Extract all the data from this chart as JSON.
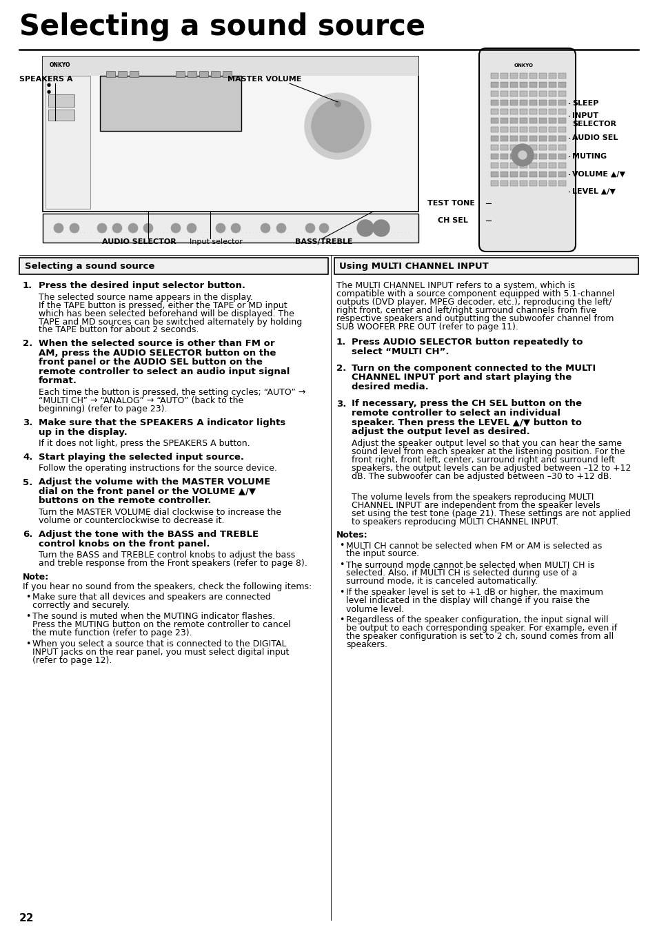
{
  "page_bg": "#ffffff",
  "title": "Selecting a sound source",
  "page_number": "22",
  "left_section_header": "Selecting a sound source",
  "right_section_header": "Using MULTI CHANNEL INPUT",
  "right_intro_lines": [
    "The MULTI CHANNEL INPUT refers to a system, which is",
    "compatible with a source component equipped with 5.1-channel",
    "outputs (DVD player, MPEG decoder, etc.), reproducing the left/",
    "right front, center and left/right surround channels from five",
    "respective speakers and outputting the subwoofer channel from",
    "SUB WOOFER PRE OUT (refer to page 11)."
  ],
  "left_steps": [
    {
      "num": "1.",
      "bold_lines": [
        "Press the desired input selector button."
      ],
      "normal_lines": [
        "The selected source name appears in the display.",
        "If the TAPE button is pressed, either the TAPE or MD input",
        "which has been selected beforehand will be displayed. The",
        "TAPE and MD sources can be switched alternately by holding",
        "the TAPE button for about 2 seconds."
      ]
    },
    {
      "num": "2.",
      "bold_lines": [
        "When the selected source is other than FM or",
        "AM, press the AUDIO SELECTOR button on the",
        "front panel or the AUDIO SEL button on the",
        "remote controller to select an audio input signal",
        "format."
      ],
      "normal_lines": [
        "Each time the button is pressed, the setting cycles; “AUTO” →",
        "“MULTI CH” → “ANALOG” → “AUTO” (back to the",
        "beginning) (refer to page 23)."
      ]
    },
    {
      "num": "3.",
      "bold_lines": [
        "Make sure that the SPEAKERS A indicator lights",
        "up in the display."
      ],
      "normal_lines": [
        "If it does not light, press the SPEAKERS A button."
      ]
    },
    {
      "num": "4.",
      "bold_lines": [
        "Start playing the selected input source."
      ],
      "normal_lines": [
        "Follow the operating instructions for the source device."
      ]
    },
    {
      "num": "5.",
      "bold_lines": [
        "Adjust the volume with the MASTER VOLUME",
        "dial on the front panel or the VOLUME ▲/▼",
        "buttons on the remote controller."
      ],
      "normal_lines": [
        "Turn the MASTER VOLUME dial clockwise to increase the",
        "volume or counterclockwise to decrease it."
      ]
    },
    {
      "num": "6.",
      "bold_lines": [
        "Adjust the tone with the BASS and TREBLE",
        "control knobs on the front panel."
      ],
      "normal_lines": [
        "Turn the BASS and TREBLE control knobs to adjust the bass",
        "and treble response from the Front speakers (refer to page 8)."
      ]
    }
  ],
  "note_title": "Note:",
  "note_intro": "If you hear no sound from the speakers, check the following items:",
  "note_bullets": [
    [
      "Make sure that all devices and speakers are connected",
      "correctly and securely."
    ],
    [
      "The sound is muted when the MUTING indicator flashes.",
      "Press the MUTING button on the remote controller to cancel",
      "the mute function (refer to page 23)."
    ],
    [
      "When you select a source that is connected to the DIGITAL",
      "INPUT jacks on the rear panel, you must select digital input",
      "(refer to page 12)."
    ]
  ],
  "right_steps": [
    {
      "num": "1.",
      "bold_lines": [
        "Press AUDIO SELECTOR button repeatedly to",
        "select “MULTI CH”."
      ],
      "normal_lines": []
    },
    {
      "num": "2.",
      "bold_lines": [
        "Turn on the component connected to the MULTI",
        "CHANNEL INPUT port and start playing the",
        "desired media."
      ],
      "normal_lines": []
    },
    {
      "num": "3.",
      "bold_lines": [
        "If necessary, press the CH SEL button on the",
        "remote controller to select an individual",
        "speaker. Then press the LEVEL ▲/▼ button to",
        "adjust the output level as desired."
      ],
      "normal_lines": [
        "Adjust the speaker output level so that you can hear the same",
        "sound level from each speaker at the listening position. For the",
        "front right, front left, center, surround right and surround left",
        "speakers, the output levels can be adjusted between –12 to +12",
        "dB. The subwoofer can be adjusted between –30 to +12 dB.",
        "",
        "The volume levels from the speakers reproducing MULTI",
        "CHANNEL INPUT are independent from the speaker levels",
        "set using the test tone (page 21). These settings are not applied",
        "to speakers reproducing MULTI CHANNEL INPUT."
      ]
    }
  ],
  "right_note_title": "Notes:",
  "right_note_bullets": [
    [
      "MULTI CH cannot be selected when FM or AM is selected as",
      "the input source."
    ],
    [
      "The surround mode cannot be selected when MULTI CH is",
      "selected. Also, if MULTI CH is selected during use of a",
      "surround mode, it is canceled automatically."
    ],
    [
      "If the speaker level is set to +1 dB or higher, the maximum",
      "level indicated in the display will change if you raise the",
      "volume level."
    ],
    [
      "Regardless of the speaker configuration, the input signal will",
      "be output to each corresponding speaker. For example, even if",
      "the speaker configuration is set to 2 ch, sound comes from all",
      "speakers."
    ]
  ]
}
